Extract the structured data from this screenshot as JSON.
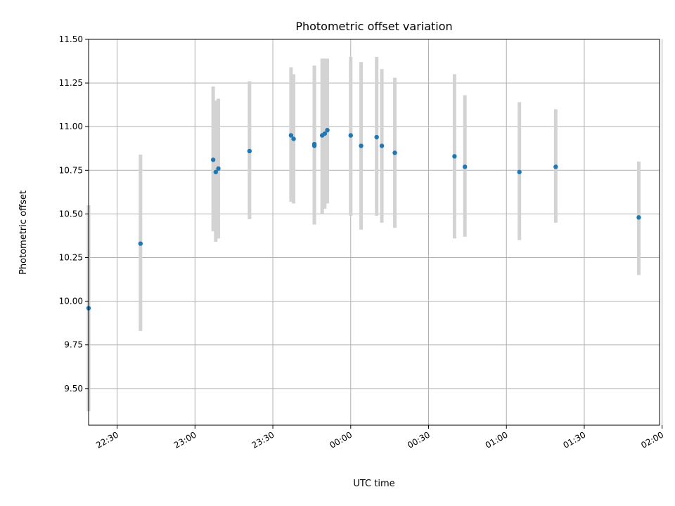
{
  "chart_data": {
    "type": "scatter",
    "title": "Photometric offset variation",
    "xlabel": "UTC time",
    "ylabel": "Photometric offset",
    "x_axis": {
      "kind": "time",
      "range": [
        "22:19",
        "01:59"
      ],
      "ticks": [
        "22:30",
        "23:00",
        "23:30",
        "00:00",
        "00:30",
        "01:00",
        "01:30",
        "02:00"
      ],
      "tick_label_rotation": 30
    },
    "y_axis": {
      "range": [
        9.29,
        11.5
      ],
      "ticks": [
        9.5,
        9.75,
        10.0,
        10.25,
        10.5,
        10.75,
        11.0,
        11.25,
        11.5
      ],
      "tick_labels": [
        "9.50",
        "9.75",
        "10.00",
        "10.25",
        "10.50",
        "10.75",
        "11.00",
        "11.25",
        "11.50"
      ]
    },
    "grid": true,
    "legend": "none",
    "point_color": "#1f77b4",
    "errorbar_color": "#d3d3d3",
    "points": [
      {
        "x": "22:19",
        "y": 9.96,
        "err_low": 9.37,
        "err_high": 10.55
      },
      {
        "x": "22:39",
        "y": 10.33,
        "err_low": 9.83,
        "err_high": 10.84
      },
      {
        "x": "23:07",
        "y": 10.81,
        "err_low": 10.4,
        "err_high": 11.23
      },
      {
        "x": "23:08",
        "y": 10.74,
        "err_low": 10.34,
        "err_high": 11.15
      },
      {
        "x": "23:09",
        "y": 10.76,
        "err_low": 10.36,
        "err_high": 11.16
      },
      {
        "x": "23:21",
        "y": 10.86,
        "err_low": 10.47,
        "err_high": 11.26
      },
      {
        "x": "23:37",
        "y": 10.95,
        "err_low": 10.57,
        "err_high": 11.34
      },
      {
        "x": "23:38",
        "y": 10.93,
        "err_low": 10.56,
        "err_high": 11.3
      },
      {
        "x": "23:46",
        "y": 10.9,
        "err_low": 10.44,
        "err_high": 11.35
      },
      {
        "x": "23:46",
        "y": 10.89,
        "err_low": 10.44,
        "err_high": 11.34
      },
      {
        "x": "23:49",
        "y": 10.95,
        "err_low": 10.5,
        "err_high": 11.39
      },
      {
        "x": "23:50",
        "y": 10.96,
        "err_low": 10.53,
        "err_high": 11.39
      },
      {
        "x": "23:51",
        "y": 10.98,
        "err_low": 10.56,
        "err_high": 11.39
      },
      {
        "x": "00:00",
        "y": 10.95,
        "err_low": 10.49,
        "err_high": 11.4
      },
      {
        "x": "00:04",
        "y": 10.89,
        "err_low": 10.41,
        "err_high": 11.37
      },
      {
        "x": "00:10",
        "y": 10.94,
        "err_low": 10.49,
        "err_high": 11.4
      },
      {
        "x": "00:12",
        "y": 10.89,
        "err_low": 10.45,
        "err_high": 11.33
      },
      {
        "x": "00:17",
        "y": 10.85,
        "err_low": 10.42,
        "err_high": 11.28
      },
      {
        "x": "00:40",
        "y": 10.83,
        "err_low": 10.36,
        "err_high": 11.3
      },
      {
        "x": "00:44",
        "y": 10.77,
        "err_low": 10.37,
        "err_high": 11.18
      },
      {
        "x": "01:05",
        "y": 10.74,
        "err_low": 10.35,
        "err_high": 11.14
      },
      {
        "x": "01:19",
        "y": 10.77,
        "err_low": 10.45,
        "err_high": 11.1
      },
      {
        "x": "01:51",
        "y": 10.48,
        "err_low": 10.15,
        "err_high": 10.8
      }
    ]
  }
}
